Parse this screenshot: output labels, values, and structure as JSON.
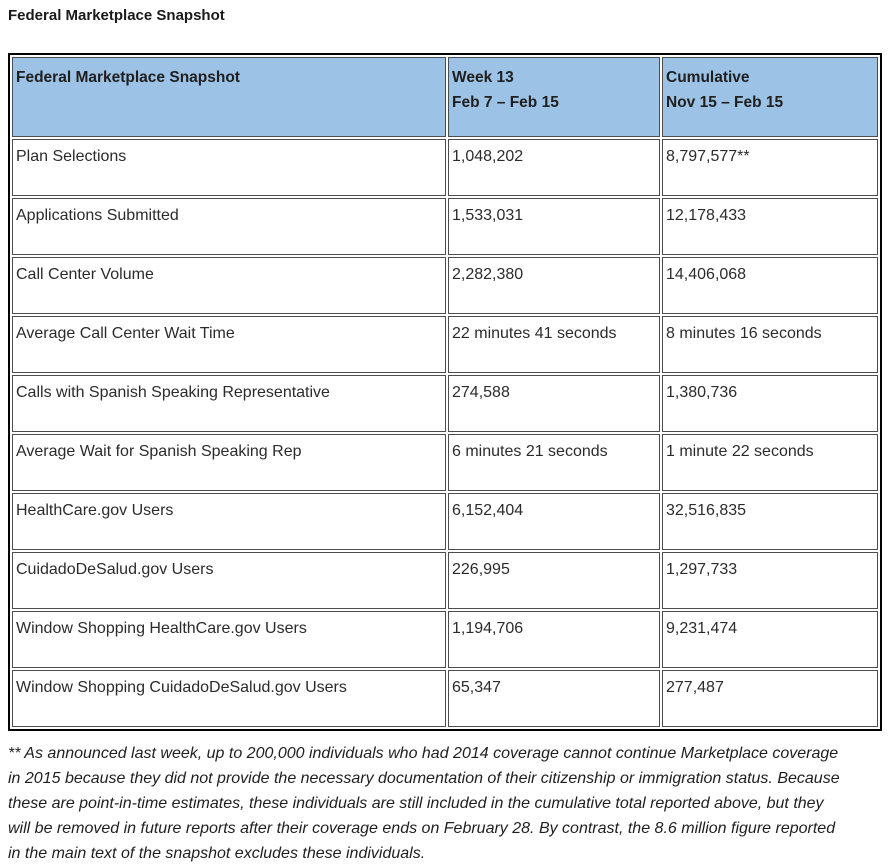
{
  "page_title": "Federal Marketplace Snapshot",
  "colors": {
    "header_background": "#9cc2e5",
    "outer_border": "#000000",
    "cell_border": "#4d4d4d",
    "text": "#1a1a1a"
  },
  "table": {
    "header": {
      "metric": "Federal Marketplace Snapshot",
      "week": "Week 13\nFeb 7 – Feb 15",
      "cumulative": "Cumulative\nNov 15 – Feb 15"
    },
    "rows": [
      {
        "label": "Plan Selections",
        "week": "1,048,202",
        "cumulative": "8,797,577**"
      },
      {
        "label": "Applications Submitted",
        "week": "1,533,031",
        "cumulative": "12,178,433"
      },
      {
        "label": "Call Center Volume",
        "week": "2,282,380",
        "cumulative": "14,406,068"
      },
      {
        "label": "Average Call Center Wait Time",
        "week": "22 minutes 41 seconds",
        "cumulative": "8 minutes 16 seconds"
      },
      {
        "label": "Calls with Spanish Speaking Representative",
        "week": "274,588",
        "cumulative": "1,380,736"
      },
      {
        "label": "Average Wait for Spanish Speaking Rep",
        "week": "6 minutes 21 seconds",
        "cumulative": "1 minute 22 seconds"
      },
      {
        "label": "HealthCare.gov Users",
        "week": "6,152,404",
        "cumulative": "32,516,835"
      },
      {
        "label": "CuidadoDeSalud.gov Users",
        "week": "226,995",
        "cumulative": "1,297,733"
      },
      {
        "label": "Window Shopping HealthCare.gov Users",
        "week": "1,194,706",
        "cumulative": "9,231,474"
      },
      {
        "label": "Window Shopping CuidadoDeSalud.gov Users",
        "week": "65,347",
        "cumulative": "277,487"
      }
    ]
  },
  "footnote": "** As announced last week, up to 200,000 individuals who had 2014 coverage cannot continue Marketplace coverage\nin 2015 because they did not provide the necessary documentation of their citizenship or immigration status. Because\nthese are point-in-time estimates, these individuals are still included in the cumulative total reported above, but they\nwill be removed in future reports after their coverage ends on February 28. By contrast, the 8.6 million figure reported\nin the main text of the snapshot excludes these individuals."
}
